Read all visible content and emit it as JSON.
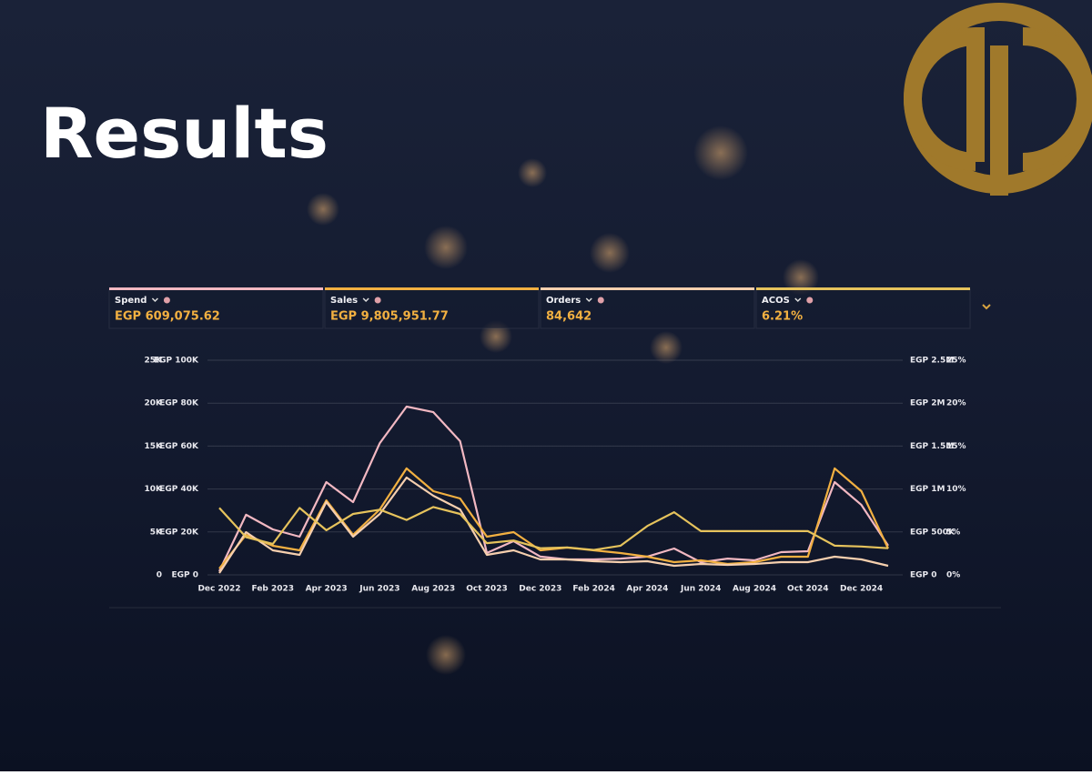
{
  "title": "Results",
  "metrics": [
    {
      "label": "Spend",
      "value": "EGP 609,075.62"
    },
    {
      "label": "Sales",
      "value": "EGP 9,805,951.77"
    },
    {
      "label": "Orders",
      "value": "84,642"
    },
    {
      "label": "ACOS",
      "value": "6.21%"
    }
  ],
  "chart_data": {
    "type": "line",
    "categories": [
      "Dec 2022",
      null,
      "Feb 2023",
      null,
      "Apr 2023",
      null,
      "Jun 2023",
      null,
      "Aug 2023",
      null,
      "Oct 2023",
      null,
      "Dec 2023",
      null,
      "Feb 2024",
      null,
      "Apr 2024",
      null,
      "Jun 2024",
      null,
      "Aug 2024",
      null,
      "Oct 2024",
      null,
      "Dec 2024",
      null
    ],
    "ylim": [
      0,
      100000
    ],
    "yticks": [
      {
        "value": 0,
        "label": "EGP 0"
      },
      {
        "value": 20000,
        "label": "EGP 20K"
      },
      {
        "value": 40000,
        "label": "EGP 40K"
      },
      {
        "value": 60000,
        "label": "EGP 60K"
      },
      {
        "value": 80000,
        "label": "EGP 80K"
      },
      {
        "value": 100000,
        "label": "EGP 100K"
      }
    ],
    "y2lim": [
      0,
      2500000
    ],
    "y2ticks": [
      {
        "value": 0,
        "label": "EGP 0"
      },
      {
        "value": 500000,
        "label": "EGP 500K"
      },
      {
        "value": 1000000,
        "label": "EGP 1M"
      },
      {
        "value": 1500000,
        "label": "EGP 1.5M"
      },
      {
        "value": 2000000,
        "label": "EGP 2M"
      },
      {
        "value": 2500000,
        "label": "EGP 2.5M"
      }
    ],
    "y3lim": [
      0,
      25000
    ],
    "y3ticks": [
      0,
      {
        "value": 5000,
        "label": "5K"
      },
      {
        "value": 10000,
        "label": "10K"
      },
      {
        "value": 15000,
        "label": "15K"
      },
      {
        "value": 20000,
        "label": "20K"
      },
      {
        "value": 25000,
        "label": "25K"
      }
    ],
    "y4lim": [
      0,
      25
    ],
    "y4ticks": [
      {
        "value": 0,
        "label": "0%"
      },
      {
        "value": 5,
        "label": "5%"
      },
      {
        "value": 10,
        "label": "10%"
      },
      {
        "value": 15,
        "label": "15%"
      },
      {
        "value": 20,
        "label": "20%"
      },
      {
        "value": 25,
        "label": "25%"
      }
    ],
    "grid": true,
    "series": [
      {
        "name": "Spend",
        "color": "#f2b8c2",
        "axis": "y",
        "values": [
          1700,
          28000,
          21200,
          17800,
          43200,
          33900,
          61400,
          78400,
          75800,
          62300,
          10200,
          15700,
          8500,
          7200,
          7200,
          7600,
          8500,
          12300,
          5900,
          7600,
          6800,
          10600,
          11000,
          43200,
          32600,
          13600
        ]
      },
      {
        "name": "Sales",
        "color": "#f2b041",
        "axis": "y2",
        "values": [
          74000,
          466000,
          339000,
          286000,
          869000,
          466000,
          763000,
          1240000,
          975000,
          890000,
          445000,
          498000,
          286000,
          318000,
          286000,
          254000,
          212000,
          148000,
          169000,
          127000,
          148000,
          212000,
          212000,
          1240000,
          975000,
          307000
        ]
      },
      {
        "name": "Orders",
        "color": "#f6cfae",
        "axis": "y3",
        "values": [
          210,
          4980,
          2860,
          2330,
          8480,
          4450,
          7100,
          11340,
          9220,
          7630,
          2330,
          2860,
          1800,
          1800,
          1590,
          1480,
          1590,
          1060,
          1270,
          1170,
          1270,
          1480,
          1480,
          2120,
          1800,
          1060
        ]
      },
      {
        "name": "ACOS",
        "color": "#e6c35c",
        "axis": "y4",
        "values": [
          7.8,
          4.4,
          3.6,
          7.8,
          5.2,
          7.1,
          7.6,
          6.4,
          7.9,
          7.1,
          3.7,
          4.0,
          3.1,
          3.2,
          2.9,
          3.4,
          5.7,
          7.3,
          5.1,
          5.1,
          5.1,
          5.1,
          5.1,
          3.4,
          3.3,
          3.1
        ]
      }
    ]
  }
}
